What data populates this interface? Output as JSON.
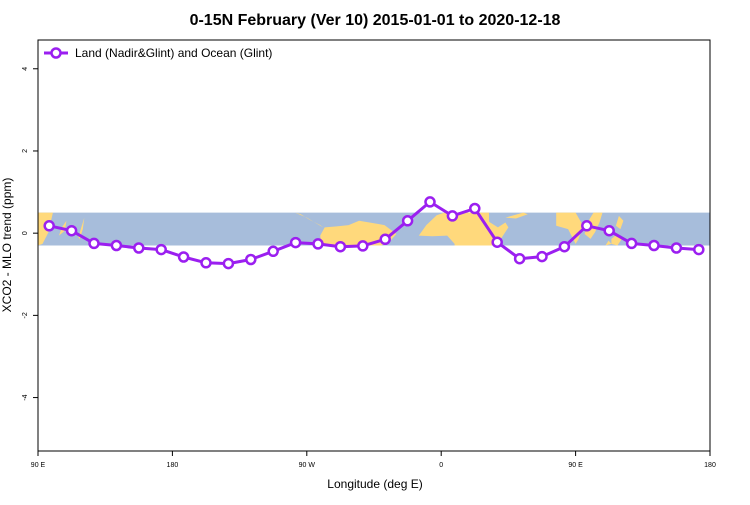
{
  "chart_data": {
    "type": "line",
    "title": "0-15N February (Ver 10)   2015-01-01 to 2020-12-18",
    "xlabel": "Longitude (deg E)",
    "ylabel": "XCO2 - MLO trend (ppm)",
    "xlim": [
      90,
      540
    ],
    "ylim": [
      -5.3,
      4.7
    ],
    "x_ticks": [
      {
        "value": 90,
        "label": "90 E"
      },
      {
        "value": 180,
        "label": "180"
      },
      {
        "value": 270,
        "label": "90 W"
      },
      {
        "value": 360,
        "label": "0"
      },
      {
        "value": 450,
        "label": "90 E"
      },
      {
        "value": 540,
        "label": "180"
      }
    ],
    "y_ticks": [
      {
        "value": 4,
        "label": "4"
      },
      {
        "value": 2,
        "label": "2"
      },
      {
        "value": 0,
        "label": "0"
      },
      {
        "value": -2,
        "label": "-2"
      },
      {
        "value": -4,
        "label": "-4"
      }
    ],
    "map_band": {
      "lat_from": 0,
      "lat_to": 15,
      "y_bottom": -0.3,
      "y_top": 0.5,
      "ocean_color": "#a7bddb",
      "land_color": "#ffd97c"
    },
    "legend": {
      "placement": "top-left"
    },
    "series": [
      {
        "name": "Land (Nadir&Glint) and Ocean (Glint)",
        "color": "#9b1ff0",
        "x": [
          97.5,
          112.5,
          127.5,
          142.5,
          157.5,
          172.5,
          187.5,
          202.5,
          217.5,
          232.5,
          247.5,
          262.5,
          277.5,
          292.5,
          307.5,
          322.5,
          337.5,
          352.5,
          367.5,
          382.5,
          397.5,
          412.5,
          427.5,
          442.5,
          457.5,
          472.5,
          487.5,
          502.5,
          517.5,
          532.5
        ],
        "values": [
          0.18,
          0.06,
          -0.25,
          -0.3,
          -0.36,
          -0.4,
          -0.58,
          -0.72,
          -0.74,
          -0.64,
          -0.44,
          -0.23,
          -0.26,
          -0.33,
          -0.31,
          -0.15,
          0.3,
          0.76,
          0.42,
          0.6,
          -0.22,
          -0.62,
          -0.57,
          -0.33,
          0.18,
          0.06,
          -0.25,
          -0.3,
          -0.36,
          -0.4
        ]
      }
    ]
  }
}
